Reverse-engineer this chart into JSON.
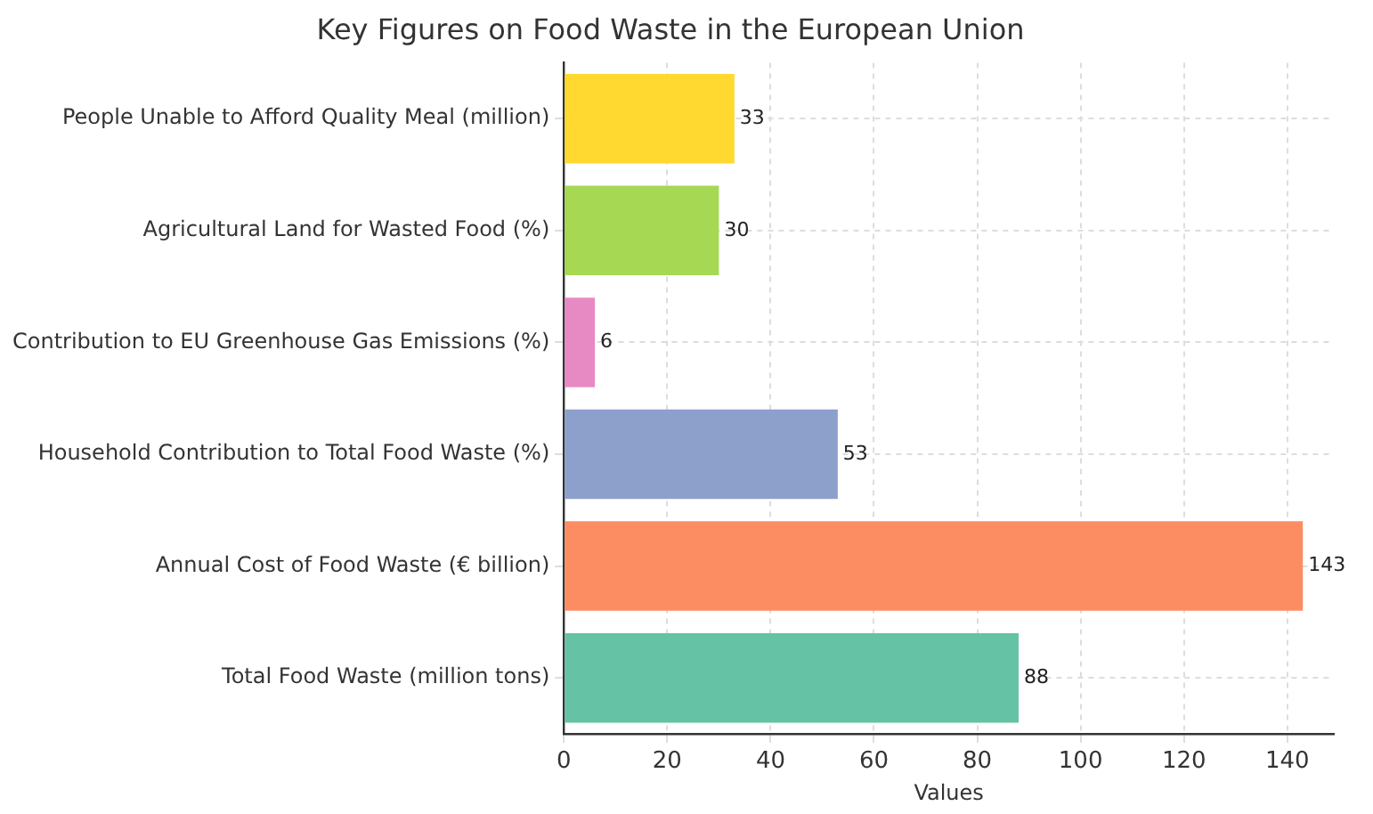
{
  "chart_data": {
    "type": "bar",
    "orientation": "horizontal",
    "title": "Key Figures on Food Waste in the European Union",
    "xlabel": "Values",
    "categories": [
      "People Unable to Afford Quality Meal (million)",
      "Agricultural Land for Wasted Food (%)",
      "Contribution to EU Greenhouse Gas Emissions (%)",
      "Household Contribution to Total Food Waste (%)",
      "Annual Cost of Food Waste (€ billion)",
      "Total Food Waste (million tons)"
    ],
    "values": [
      33,
      30,
      6,
      53,
      143,
      88
    ],
    "colors": [
      "#ffd92f",
      "#a6d854",
      "#e78ac3",
      "#8da0cb",
      "#fc8d62",
      "#66c2a5"
    ],
    "xlim": [
      0,
      149
    ],
    "xticks": [
      0,
      20,
      40,
      60,
      80,
      100,
      120,
      140
    ],
    "grid": true,
    "data_labels": true
  }
}
